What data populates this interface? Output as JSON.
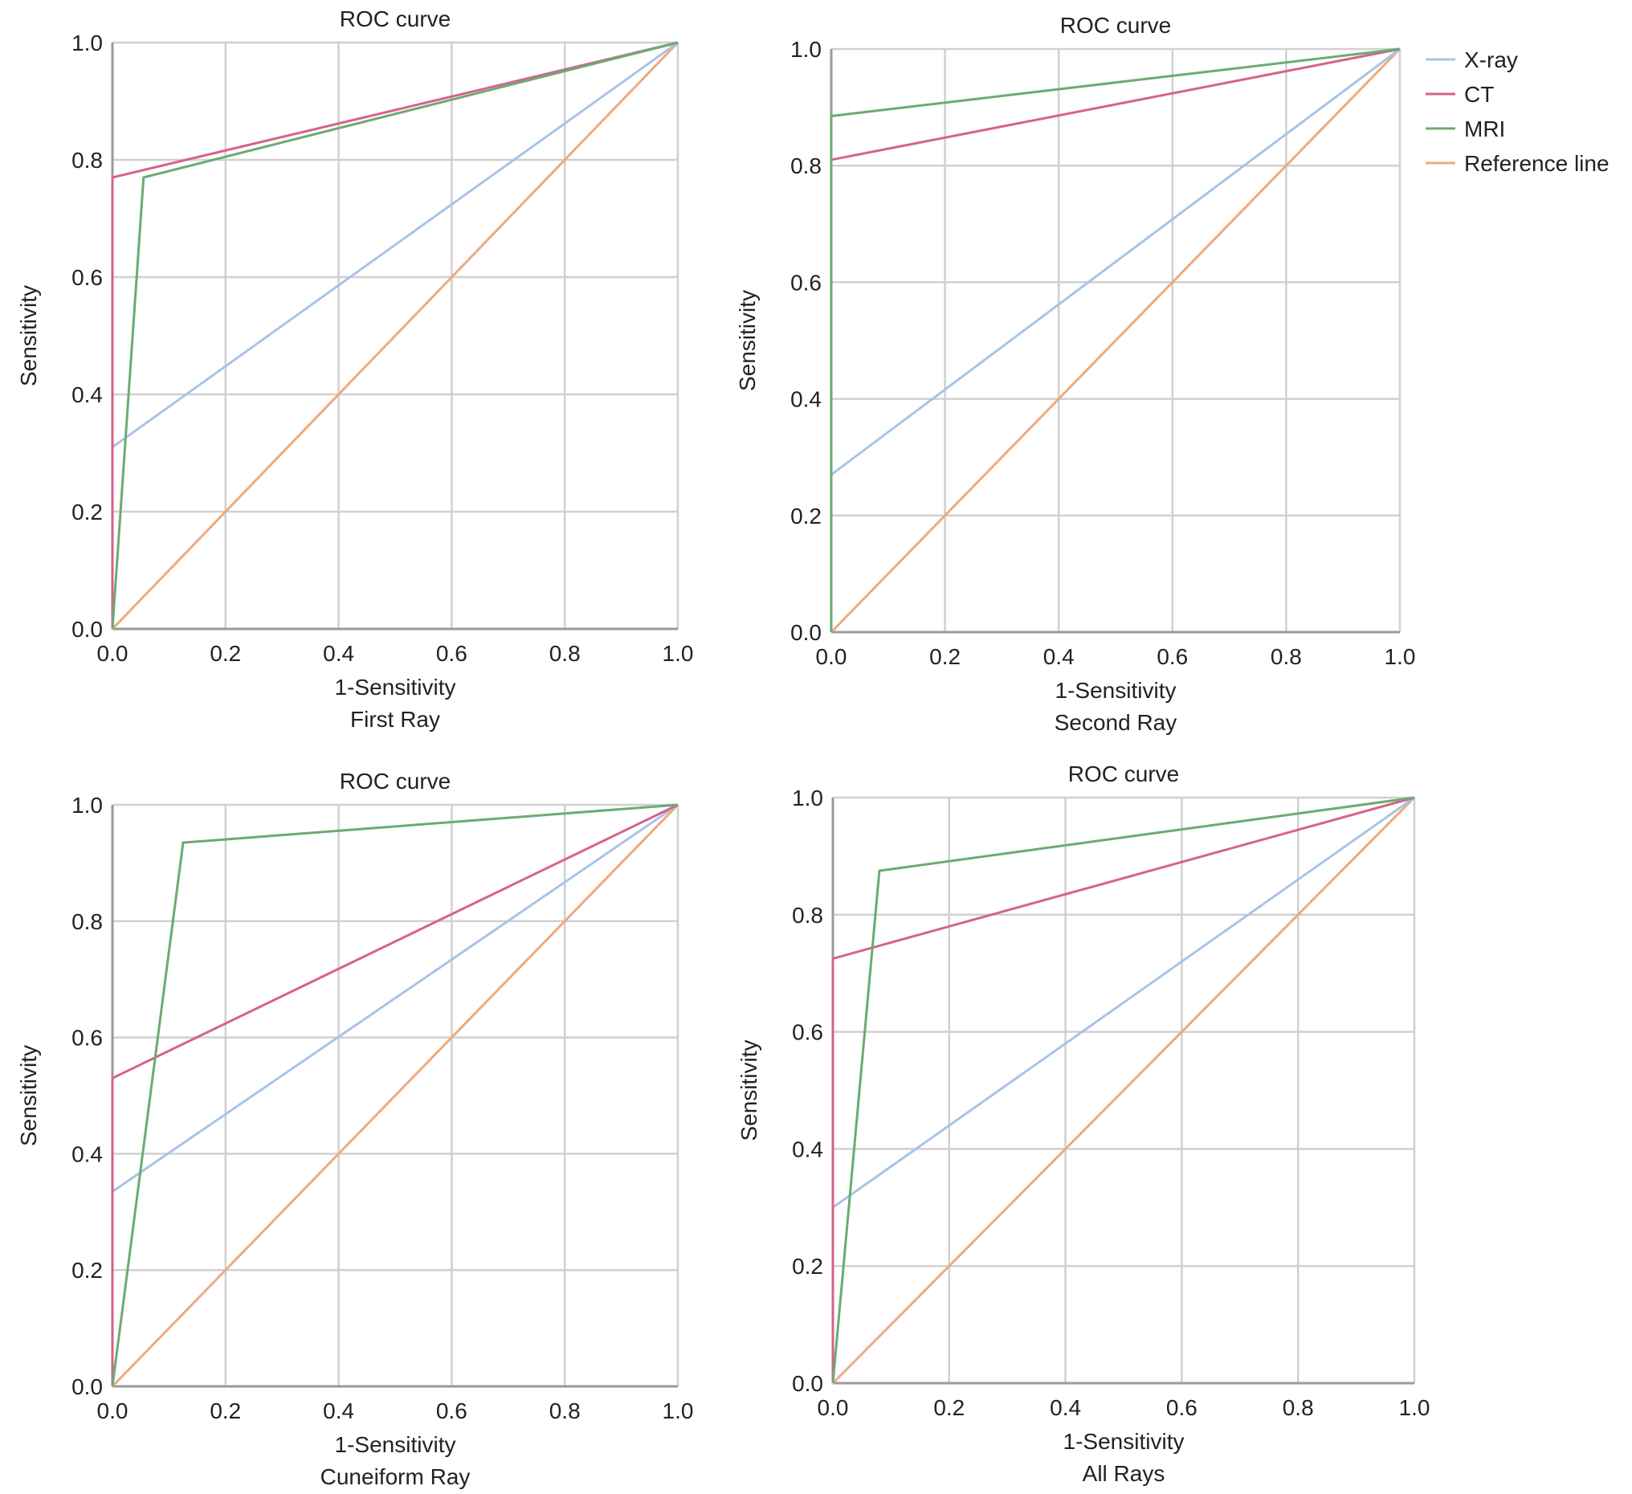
{
  "chart_data": [
    {
      "type": "line",
      "title": "ROC curve",
      "xlabel": "1-Sensitivity",
      "subtitle": "First Ray",
      "ylabel": "Sensitivity",
      "xlim": [
        0,
        1
      ],
      "ylim": [
        0,
        1
      ],
      "ticks": [
        "0.0",
        "0.2",
        "0.4",
        "0.6",
        "0.8",
        "1.0"
      ],
      "grid": true,
      "series": [
        {
          "name": "X-ray",
          "color": "#a8c4e6",
          "points": [
            [
              0,
              0
            ],
            [
              0,
              0.31
            ],
            [
              1,
              1
            ]
          ]
        },
        {
          "name": "CT",
          "color": "#d6628a",
          "points": [
            [
              0,
              0
            ],
            [
              0,
              0.77
            ],
            [
              1,
              1
            ]
          ]
        },
        {
          "name": "MRI",
          "color": "#6aab74",
          "points": [
            [
              0,
              0
            ],
            [
              0.055,
              0.77
            ],
            [
              1,
              1
            ]
          ]
        },
        {
          "name": "Reference line",
          "color": "#f0a97c",
          "points": [
            [
              0,
              0
            ],
            [
              1,
              1
            ]
          ]
        }
      ]
    },
    {
      "type": "line",
      "title": "ROC curve",
      "xlabel": "1-Sensitivity",
      "subtitle": "Second Ray",
      "ylabel": "Sensitivity",
      "xlim": [
        0,
        1
      ],
      "ylim": [
        0,
        1
      ],
      "ticks": [
        "0.0",
        "0.2",
        "0.4",
        "0.6",
        "0.8",
        "1.0"
      ],
      "grid": true,
      "legend": "right",
      "series": [
        {
          "name": "X-ray",
          "color": "#a8c4e6",
          "points": [
            [
              0,
              0
            ],
            [
              0,
              0.27
            ],
            [
              1,
              1
            ]
          ]
        },
        {
          "name": "CT",
          "color": "#d6628a",
          "points": [
            [
              0,
              0
            ],
            [
              0,
              0.81
            ],
            [
              1,
              1
            ]
          ]
        },
        {
          "name": "MRI",
          "color": "#6aab74",
          "points": [
            [
              0,
              0
            ],
            [
              0,
              0.885
            ],
            [
              1,
              1
            ]
          ]
        },
        {
          "name": "Reference line",
          "color": "#f0a97c",
          "points": [
            [
              0,
              0
            ],
            [
              1,
              1
            ]
          ]
        }
      ]
    },
    {
      "type": "line",
      "title": "ROC curve",
      "xlabel": "1-Sensitivity",
      "subtitle": "Cuneiform Ray",
      "ylabel": "Sensitivity",
      "xlim": [
        0,
        1
      ],
      "ylim": [
        0,
        1
      ],
      "ticks": [
        "0.0",
        "0.2",
        "0.4",
        "0.6",
        "0.8",
        "1.0"
      ],
      "grid": true,
      "series": [
        {
          "name": "X-ray",
          "color": "#a8c4e6",
          "points": [
            [
              0,
              0
            ],
            [
              0,
              0.335
            ],
            [
              1,
              1
            ]
          ]
        },
        {
          "name": "CT",
          "color": "#d6628a",
          "points": [
            [
              0,
              0
            ],
            [
              0,
              0.53
            ],
            [
              1,
              1
            ]
          ]
        },
        {
          "name": "MRI",
          "color": "#6aab74",
          "points": [
            [
              0,
              0
            ],
            [
              0.125,
              0.935
            ],
            [
              1,
              1
            ]
          ]
        },
        {
          "name": "Reference line",
          "color": "#f0a97c",
          "points": [
            [
              0,
              0
            ],
            [
              1,
              1
            ]
          ]
        }
      ]
    },
    {
      "type": "line",
      "title": "ROC curve",
      "xlabel": "1-Sensitivity",
      "subtitle": "All Rays",
      "ylabel": "Sensitivity",
      "xlim": [
        0,
        1
      ],
      "ylim": [
        0,
        1
      ],
      "ticks": [
        "0.0",
        "0.2",
        "0.4",
        "0.6",
        "0.8",
        "1.0"
      ],
      "grid": true,
      "series": [
        {
          "name": "X-ray",
          "color": "#a8c4e6",
          "points": [
            [
              0,
              0
            ],
            [
              0,
              0.3
            ],
            [
              1,
              1
            ]
          ]
        },
        {
          "name": "CT",
          "color": "#d6628a",
          "points": [
            [
              0,
              0
            ],
            [
              0,
              0.725
            ],
            [
              1,
              1
            ]
          ]
        },
        {
          "name": "MRI",
          "color": "#6aab74",
          "points": [
            [
              0,
              0
            ],
            [
              0.08,
              0.875
            ],
            [
              1,
              1
            ]
          ]
        },
        {
          "name": "Reference line",
          "color": "#f0a97c",
          "points": [
            [
              0,
              0
            ],
            [
              1,
              1
            ]
          ]
        }
      ]
    }
  ]
}
